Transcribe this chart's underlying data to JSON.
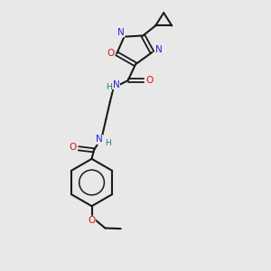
{
  "bg_color": "#e8e8e8",
  "bond_color": "#1a1a1a",
  "N_color": "#2222ee",
  "O_color": "#dd1111",
  "H_color": "#227777",
  "lw": 1.5,
  "lwd": 1.3,
  "fs": 7.5,
  "figsize": [
    3.0,
    3.0
  ],
  "dpi": 100,
  "xlim": [
    0,
    10
  ],
  "ylim": [
    0,
    10
  ]
}
